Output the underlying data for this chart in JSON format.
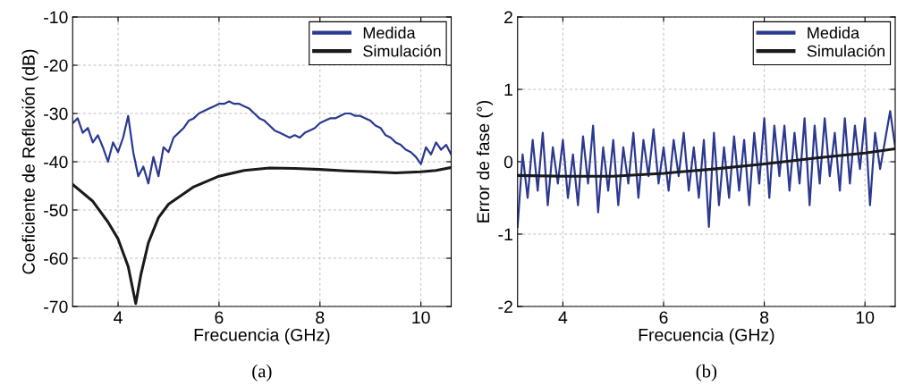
{
  "chart_data": [
    {
      "type": "line",
      "xlabel": "Frecuencia (GHz)",
      "ylabel": "Coeficiente de Reflexión (dB)",
      "annotations": [
        "(a)"
      ],
      "xlim": [
        3.1,
        10.6
      ],
      "xticks": [
        4,
        6,
        8,
        10
      ],
      "ylim": [
        -70,
        -10
      ],
      "yticks": [
        -70,
        -60,
        -50,
        -40,
        -30,
        -20,
        -10
      ],
      "grid": true,
      "legend": "top right",
      "line_style": "solid",
      "marker": "none",
      "series": [
        {
          "name": "Medida",
          "color": "#2b3990",
          "x": [
            3.1,
            3.2,
            3.3,
            3.4,
            3.5,
            3.6,
            3.7,
            3.8,
            3.9,
            4.0,
            4.1,
            4.2,
            4.3,
            4.4,
            4.5,
            4.6,
            4.7,
            4.8,
            4.9,
            5.0,
            5.1,
            5.2,
            5.3,
            5.4,
            5.5,
            5.6,
            5.7,
            5.8,
            5.9,
            6.0,
            6.1,
            6.2,
            6.3,
            6.4,
            6.5,
            6.6,
            6.7,
            6.8,
            6.9,
            7.0,
            7.1,
            7.2,
            7.3,
            7.4,
            7.5,
            7.6,
            7.7,
            7.8,
            7.9,
            8.0,
            8.1,
            8.2,
            8.3,
            8.4,
            8.5,
            8.6,
            8.7,
            8.8,
            8.9,
            9.0,
            9.1,
            9.2,
            9.3,
            9.4,
            9.5,
            9.6,
            9.7,
            9.8,
            9.9,
            10.0,
            10.1,
            10.2,
            10.3,
            10.4,
            10.5,
            10.6
          ],
          "values": [
            -32,
            -31,
            -34,
            -33,
            -36,
            -34.5,
            -37,
            -40,
            -36,
            -38,
            -35,
            -30.5,
            -38,
            -43,
            -41,
            -44.5,
            -39,
            -43,
            -37,
            -38,
            -35,
            -34,
            -33,
            -31.5,
            -31,
            -30,
            -29.5,
            -29,
            -28.5,
            -28,
            -28,
            -27.5,
            -28,
            -28,
            -28.5,
            -29,
            -30,
            -31,
            -31.5,
            -32.5,
            -33.5,
            -34,
            -34.5,
            -35,
            -34.5,
            -35,
            -34,
            -33.5,
            -33,
            -32,
            -31.5,
            -31,
            -31,
            -30.5,
            -30,
            -30,
            -30.5,
            -30.5,
            -31,
            -31.5,
            -32.5,
            -33,
            -34.5,
            -35,
            -36,
            -36.5,
            -37.5,
            -38,
            -39,
            -40.5,
            -37,
            -38.5,
            -36,
            -37.5,
            -36.5,
            -38.5
          ]
        },
        {
          "name": "Simulación",
          "color": "#1a1a1a",
          "x": [
            3.1,
            3.5,
            3.8,
            4.0,
            4.2,
            4.35,
            4.45,
            4.6,
            4.8,
            5.0,
            5.5,
            6.0,
            6.5,
            7.0,
            7.5,
            8.0,
            8.5,
            9.0,
            9.5,
            10.0,
            10.3,
            10.6
          ],
          "values": [
            -44.7,
            -48.2,
            -52.5,
            -56,
            -61.7,
            -69.4,
            -63.5,
            -56.8,
            -51.6,
            -48.8,
            -45.2,
            -43,
            -41.8,
            -41.3,
            -41.4,
            -41.6,
            -41.9,
            -42.1,
            -42.3,
            -42.1,
            -41.8,
            -41.2
          ]
        }
      ]
    },
    {
      "type": "line",
      "xlabel": "Frecuencia (GHz)",
      "ylabel": "Error de fase (°)",
      "annotations": [
        "(b)"
      ],
      "xlim": [
        3.1,
        10.6
      ],
      "xticks": [
        4,
        6,
        8,
        10
      ],
      "ylim": [
        -2,
        2
      ],
      "yticks": [
        -2,
        -1,
        0,
        1,
        2
      ],
      "grid": true,
      "legend": "top right",
      "line_style": "solid",
      "marker": "none",
      "series": [
        {
          "name": "Medida",
          "color": "#2b3990",
          "x": [
            3.1,
            3.2,
            3.3,
            3.4,
            3.5,
            3.6,
            3.7,
            3.8,
            3.9,
            4.0,
            4.1,
            4.2,
            4.3,
            4.4,
            4.5,
            4.6,
            4.7,
            4.8,
            4.9,
            5.0,
            5.1,
            5.2,
            5.3,
            5.4,
            5.5,
            5.6,
            5.7,
            5.8,
            5.9,
            6.0,
            6.1,
            6.2,
            6.3,
            6.4,
            6.5,
            6.6,
            6.7,
            6.8,
            6.9,
            7.0,
            7.1,
            7.2,
            7.3,
            7.4,
            7.5,
            7.6,
            7.7,
            7.8,
            7.9,
            8.0,
            8.1,
            8.2,
            8.3,
            8.4,
            8.5,
            8.6,
            8.7,
            8.8,
            8.9,
            9.0,
            9.1,
            9.2,
            9.3,
            9.4,
            9.5,
            9.6,
            9.7,
            9.8,
            9.9,
            10.0,
            10.1,
            10.2,
            10.3,
            10.4,
            10.5,
            10.6
          ],
          "values": [
            -0.9,
            0.1,
            -0.5,
            0.3,
            -0.4,
            0.4,
            -0.6,
            0.2,
            -0.3,
            0.3,
            -0.5,
            0.1,
            -0.6,
            0.35,
            -0.3,
            0.5,
            -0.7,
            0.2,
            -0.4,
            0.3,
            -0.6,
            0.2,
            -0.3,
            0.4,
            -0.5,
            0.3,
            -0.2,
            0.45,
            -0.3,
            0.2,
            -0.4,
            0.3,
            -0.2,
            0.4,
            -0.4,
            0.2,
            -0.5,
            0.3,
            -0.9,
            0.4,
            -0.6,
            0.2,
            -0.5,
            0.35,
            -0.4,
            0.3,
            -0.6,
            0.4,
            -0.3,
            0.6,
            -0.5,
            0.5,
            -0.2,
            0.5,
            -0.4,
            0.4,
            -0.3,
            0.6,
            -0.6,
            0.5,
            -0.3,
            0.6,
            -0.2,
            0.4,
            -0.4,
            0.6,
            -0.3,
            0.5,
            -0.1,
            0.6,
            -0.6,
            0.4,
            -0.1,
            0.3,
            0.7,
            0.2
          ]
        },
        {
          "name": "Simulación",
          "color": "#1a1a1a",
          "x": [
            3.1,
            4,
            5,
            6,
            7,
            8,
            9,
            10,
            10.6
          ],
          "values": [
            -0.19,
            -0.2,
            -0.2,
            -0.16,
            -0.1,
            -0.03,
            0.05,
            0.12,
            0.18
          ]
        }
      ]
    }
  ]
}
